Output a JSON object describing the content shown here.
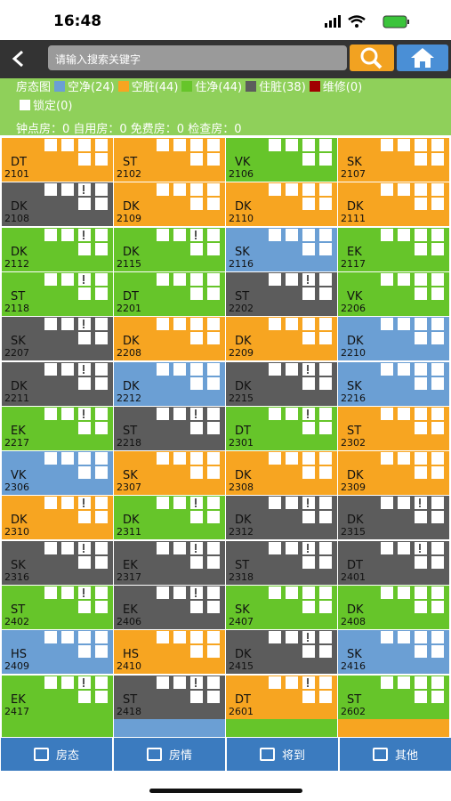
{
  "status_bar": {
    "time": "16:48"
  },
  "search": {
    "placeholder": "请输入搜索关键字"
  },
  "legend": {
    "title": "房态图",
    "items": [
      {
        "label": "空净(24)",
        "color": "#6b9fd4"
      },
      {
        "label": "空脏(44)",
        "color": "#f7a521"
      },
      {
        "label": "住净(44)",
        "color": "#66c52a"
      },
      {
        "label": "住脏(38)",
        "color": "#5c5c5c"
      },
      {
        "label": "维修(0)",
        "color": "#a00000"
      },
      {
        "label": "锁定(0)",
        "color": "#ffffff"
      }
    ]
  },
  "stats": "钟点房：0 自用房：0 免费房：0 检查房：0",
  "rooms": [
    {
      "code": "DT",
      "number": "2101",
      "color": "#f7a521",
      "flag": false
    },
    {
      "code": "ST",
      "number": "2102",
      "color": "#f7a521",
      "flag": false
    },
    {
      "code": "VK",
      "number": "2106",
      "color": "#66c52a",
      "flag": false
    },
    {
      "code": "SK",
      "number": "2107",
      "color": "#f7a521",
      "flag": false
    },
    {
      "code": "DK",
      "number": "2108",
      "color": "#5c5c5c",
      "flag": true
    },
    {
      "code": "DK",
      "number": "2109",
      "color": "#f7a521",
      "flag": false
    },
    {
      "code": "DK",
      "number": "2110",
      "color": "#f7a521",
      "flag": false
    },
    {
      "code": "DK",
      "number": "2111",
      "color": "#f7a521",
      "flag": false
    },
    {
      "code": "DK",
      "number": "2112",
      "color": "#66c52a",
      "flag": true
    },
    {
      "code": "DK",
      "number": "2115",
      "color": "#66c52a",
      "flag": true
    },
    {
      "code": "SK",
      "number": "2116",
      "color": "#6b9fd4",
      "flag": false
    },
    {
      "code": "EK",
      "number": "2117",
      "color": "#66c52a",
      "flag": false
    },
    {
      "code": "ST",
      "number": "2118",
      "color": "#66c52a",
      "flag": true
    },
    {
      "code": "DT",
      "number": "2201",
      "color": "#66c52a",
      "flag": false
    },
    {
      "code": "ST",
      "number": "2202",
      "color": "#5c5c5c",
      "flag": true
    },
    {
      "code": "VK",
      "number": "2206",
      "color": "#66c52a",
      "flag": false
    },
    {
      "code": "SK",
      "number": "2207",
      "color": "#5c5c5c",
      "flag": true
    },
    {
      "code": "DK",
      "number": "2208",
      "color": "#f7a521",
      "flag": false
    },
    {
      "code": "DK",
      "number": "2209",
      "color": "#f7a521",
      "flag": false
    },
    {
      "code": "DK",
      "number": "2210",
      "color": "#6b9fd4",
      "flag": false
    },
    {
      "code": "DK",
      "number": "2211",
      "color": "#5c5c5c",
      "flag": true
    },
    {
      "code": "DK",
      "number": "2212",
      "color": "#6b9fd4",
      "flag": false
    },
    {
      "code": "DK",
      "number": "2215",
      "color": "#5c5c5c",
      "flag": true
    },
    {
      "code": "SK",
      "number": "2216",
      "color": "#6b9fd4",
      "flag": false
    },
    {
      "code": "EK",
      "number": "2217",
      "color": "#66c52a",
      "flag": true
    },
    {
      "code": "ST",
      "number": "2218",
      "color": "#5c5c5c",
      "flag": true
    },
    {
      "code": "DT",
      "number": "2301",
      "color": "#66c52a",
      "flag": true
    },
    {
      "code": "ST",
      "number": "2302",
      "color": "#f7a521",
      "flag": false
    },
    {
      "code": "VK",
      "number": "2306",
      "color": "#6b9fd4",
      "flag": false
    },
    {
      "code": "SK",
      "number": "2307",
      "color": "#f7a521",
      "flag": false
    },
    {
      "code": "DK",
      "number": "2308",
      "color": "#f7a521",
      "flag": false
    },
    {
      "code": "DK",
      "number": "2309",
      "color": "#f7a521",
      "flag": false
    },
    {
      "code": "DK",
      "number": "2310",
      "color": "#f7a521",
      "flag": true
    },
    {
      "code": "DK",
      "number": "2311",
      "color": "#66c52a",
      "flag": true
    },
    {
      "code": "DK",
      "number": "2312",
      "color": "#5c5c5c",
      "flag": true
    },
    {
      "code": "DK",
      "number": "2315",
      "color": "#5c5c5c",
      "flag": true
    },
    {
      "code": "SK",
      "number": "2316",
      "color": "#5c5c5c",
      "flag": true
    },
    {
      "code": "EK",
      "number": "2317",
      "color": "#5c5c5c",
      "flag": true
    },
    {
      "code": "ST",
      "number": "2318",
      "color": "#5c5c5c",
      "flag": true
    },
    {
      "code": "DT",
      "number": "2401",
      "color": "#5c5c5c",
      "flag": true
    },
    {
      "code": "ST",
      "number": "2402",
      "color": "#66c52a",
      "flag": true
    },
    {
      "code": "EK",
      "number": "2406",
      "color": "#5c5c5c",
      "flag": true
    },
    {
      "code": "SK",
      "number": "2407",
      "color": "#66c52a",
      "flag": false
    },
    {
      "code": "DK",
      "number": "2408",
      "color": "#66c52a",
      "flag": false
    },
    {
      "code": "HS",
      "number": "2409",
      "color": "#6b9fd4",
      "flag": false
    },
    {
      "code": "HS",
      "number": "2410",
      "color": "#f7a521",
      "flag": false
    },
    {
      "code": "DK",
      "number": "2415",
      "color": "#5c5c5c",
      "flag": true
    },
    {
      "code": "SK",
      "number": "2416",
      "color": "#6b9fd4",
      "flag": false
    },
    {
      "code": "EK",
      "number": "2417",
      "color": "#66c52a",
      "flag": true
    },
    {
      "code": "ST",
      "number": "2418",
      "color": "#5c5c5c",
      "flag": true
    },
    {
      "code": "DT",
      "number": "2601",
      "color": "#f7a521",
      "flag": true
    },
    {
      "code": "ST",
      "number": "2602",
      "color": "#66c52a",
      "flag": false
    }
  ],
  "tabs": [
    "房态",
    "房情",
    "将到",
    "其他"
  ]
}
